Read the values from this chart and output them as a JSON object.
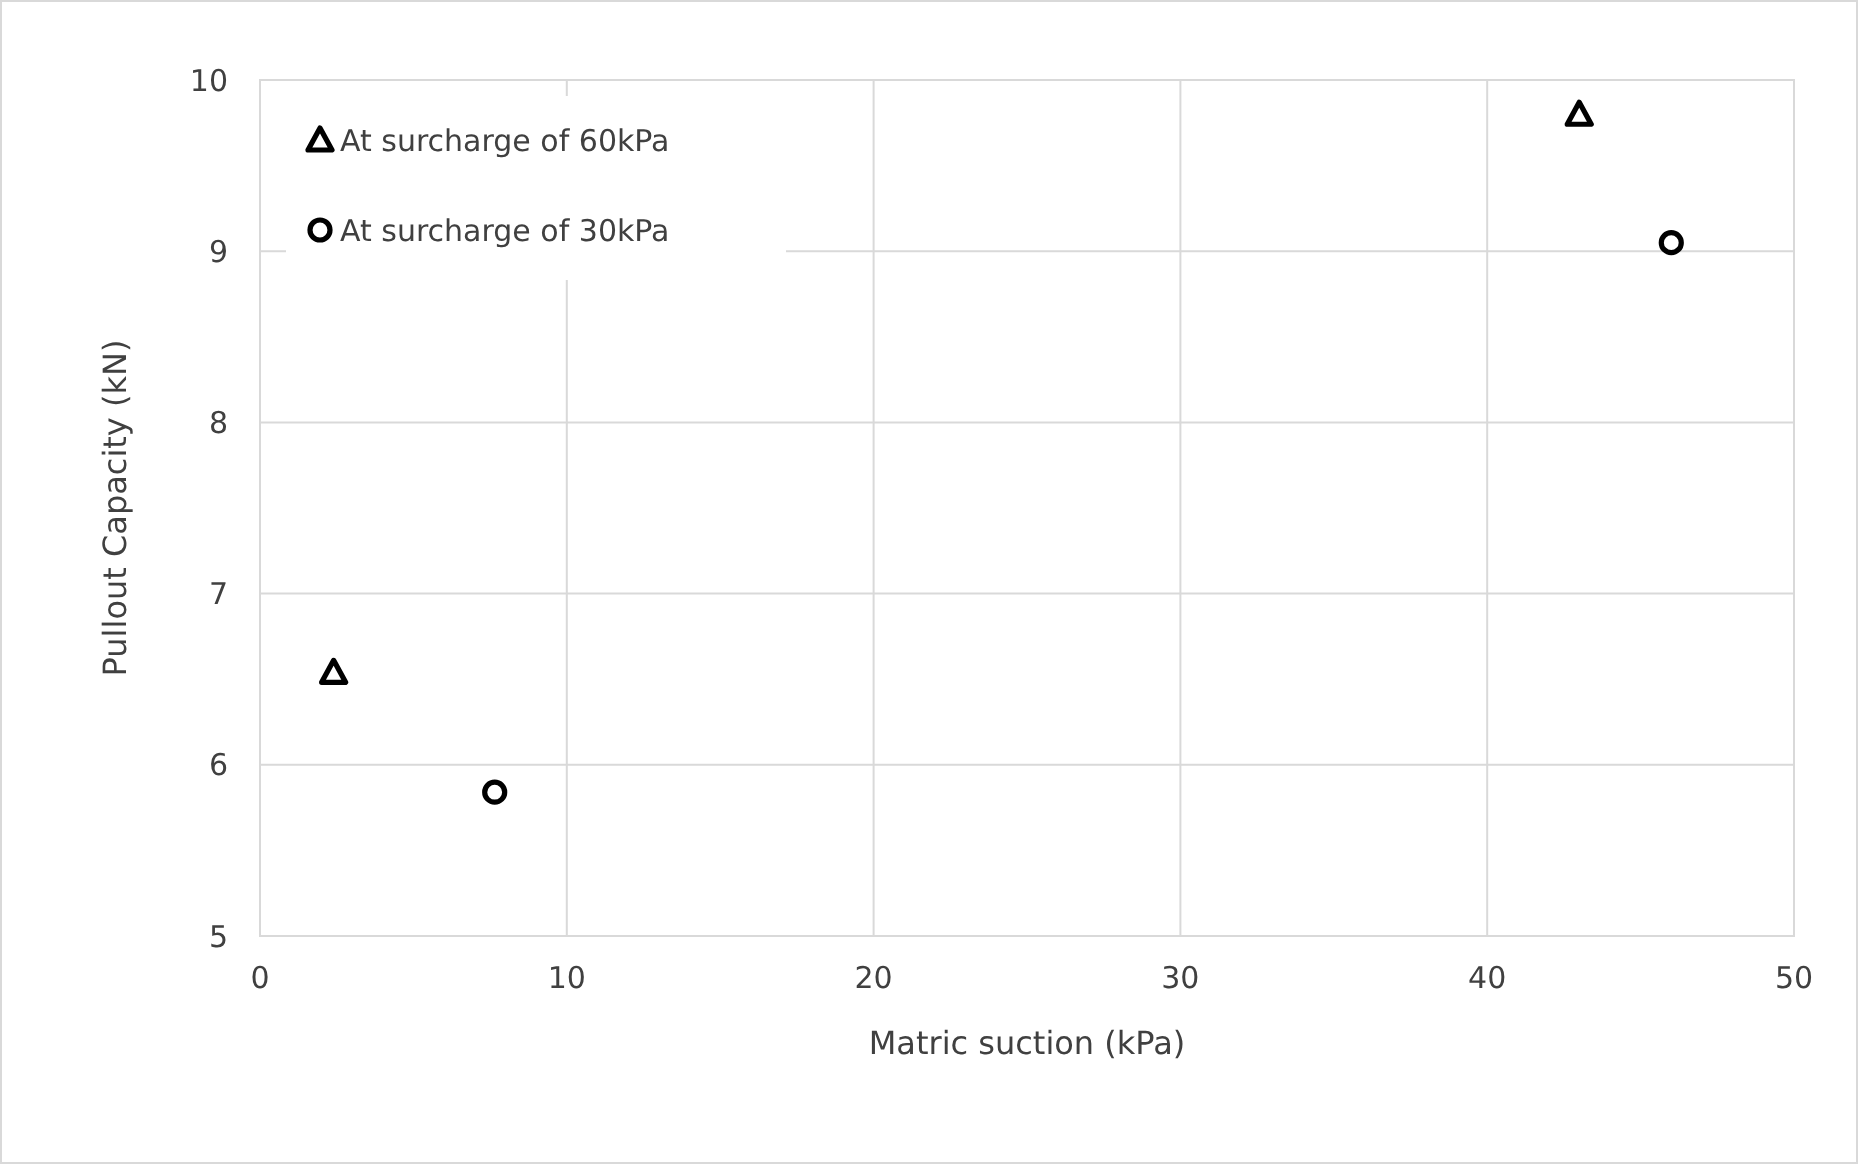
{
  "chart_data": {
    "type": "scatter",
    "xlabel": "Matric suction (kPa)",
    "ylabel": "Pullout Capacity (kN)",
    "xlim": [
      0,
      50
    ],
    "xticks": [
      0,
      10,
      20,
      30,
      40,
      50
    ],
    "ylim": [
      5,
      10
    ],
    "yticks": [
      5,
      6,
      7,
      8,
      9,
      10
    ],
    "grid": true,
    "legend": "top left",
    "series": [
      {
        "name": "At surcharge of 60kPa",
        "color": "#000000",
        "marker": "triangle",
        "x": [
          2.4,
          43.0
        ],
        "values": [
          6.54,
          9.8
        ]
      },
      {
        "name": "At surcharge of 30kPa",
        "color": "#000000",
        "marker": "circle",
        "x": [
          7.65,
          46.0
        ],
        "values": [
          5.84,
          9.05
        ]
      }
    ]
  }
}
